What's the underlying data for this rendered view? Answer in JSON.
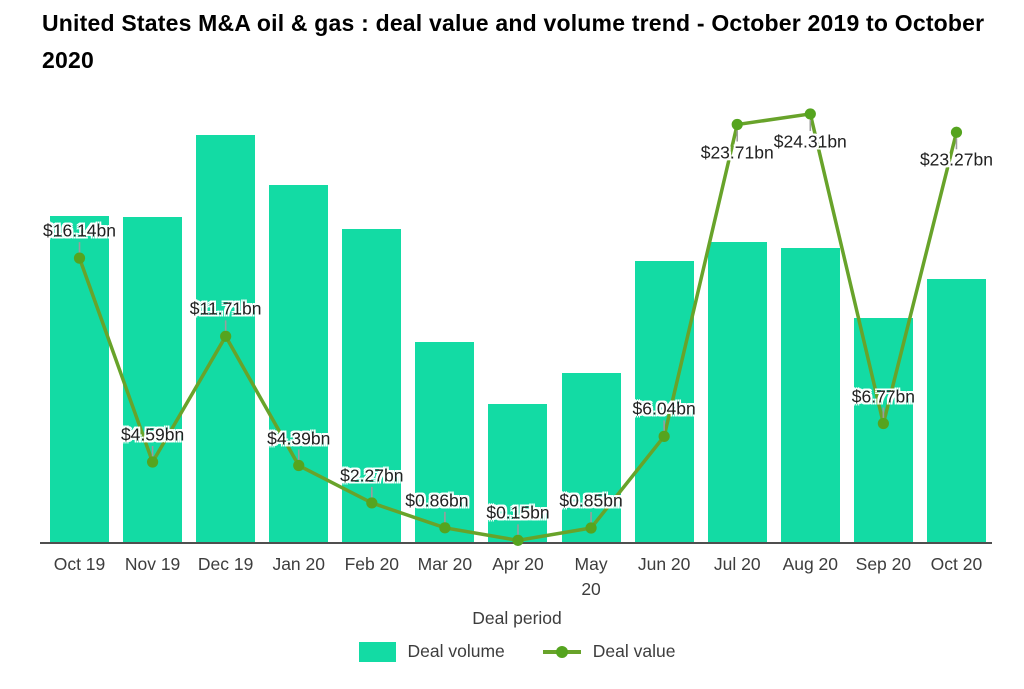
{
  "title": "United States M&A oil & gas : deal value and volume trend - October 2019 to October 2020",
  "legend": {
    "volume_label": "Deal volume",
    "value_label": "Deal value"
  },
  "colors": {
    "bar": "#13dba4",
    "line": "#68a32a",
    "marker": "#55a41f",
    "axis": "#4f4f4f",
    "tick_text": "#3d3d3d",
    "label_text": "#212121",
    "leader": "#9c9c9c",
    "title_text": "#000000"
  },
  "chart_data": {
    "type": "bar",
    "subtype": "combo bar+line",
    "title": "United States M&A oil & gas : deal value and volume trend - October 2019 to October 2020",
    "xlabel": "Deal period",
    "ylabel": "",
    "gridlines": false,
    "legend_position": "bottom",
    "categories": [
      "Oct 19",
      "Nov 19",
      "Dec 19",
      "Jan 20",
      "Feb 20",
      "Mar 20",
      "Apr 20",
      "May 20",
      "Jun 20",
      "Jul 20",
      "Aug 20",
      "Sep 20",
      "Oct 20"
    ],
    "tick_display": [
      "Oct 19",
      "Nov 19",
      "Dec 19",
      "Jan 20",
      "Feb 20",
      "Mar 20",
      "Apr 20",
      "May\n20",
      "Jun 20",
      "Jul 20",
      "Aug 20",
      "Sep 20",
      "Oct 20"
    ],
    "series": [
      {
        "name": "Deal volume",
        "type": "bar",
        "unit": "relative height, no value axis shown (max month Dec 19 = 100)",
        "values": [
          80.1,
          79.9,
          100,
          87.7,
          77.0,
          49.3,
          34.1,
          41.7,
          69.1,
          73.8,
          72.3,
          55.1,
          64.7
        ]
      },
      {
        "name": "Deal value",
        "type": "line",
        "unit": "USD bn",
        "values": [
          16.14,
          4.59,
          11.71,
          4.39,
          2.27,
          0.86,
          0.15,
          0.85,
          6.04,
          23.71,
          24.31,
          6.77,
          23.27
        ],
        "point_labels": [
          "$16.14bn",
          "$4.59bn",
          "$11.71bn",
          "$4.39bn",
          "$2.27bn",
          "$0.86bn",
          "$0.15bn",
          "$0.85bn",
          "$6.04bn",
          "$23.71bn",
          "$24.31bn",
          "$6.77bn",
          "$23.27bn"
        ],
        "label_side": [
          "above",
          "above",
          "above",
          "above",
          "above",
          "above",
          "above",
          "above",
          "above",
          "below",
          "below",
          "above",
          "below"
        ]
      }
    ]
  }
}
